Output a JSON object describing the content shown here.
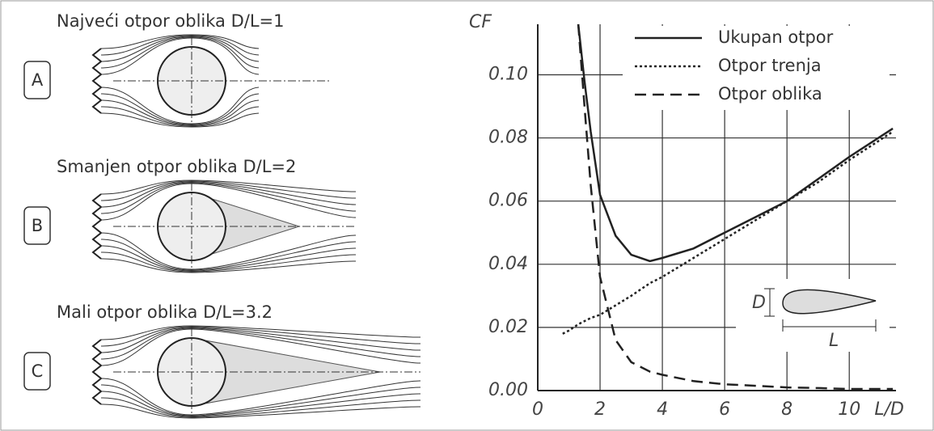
{
  "diagrams": [
    {
      "label": "A",
      "title": "Najveći otpor oblika D/L=1"
    },
    {
      "label": "B",
      "title": "Smanjen otpor oblika D/L=2"
    },
    {
      "label": "C",
      "title": "Mali otpor oblika D/L=3.2"
    }
  ],
  "chart_data": {
    "type": "line",
    "y_label": "CF",
    "x_label": "L/D",
    "x": [
      0.8,
      1,
      1.3,
      1.5,
      1.7,
      2,
      2.5,
      3,
      3.6,
      4,
      5,
      6,
      7,
      8,
      9,
      10,
      11.4
    ],
    "series": [
      {
        "name": "Ukupan otpor",
        "color": "#222",
        "dash": "solid",
        "values": [
          null,
          null,
          0.116,
          0.098,
          0.082,
          0.062,
          0.049,
          0.043,
          0.041,
          0.042,
          0.045,
          0.05,
          0.055,
          0.06,
          0.067,
          0.074,
          0.083
        ]
      },
      {
        "name": "Otpor trenja",
        "color": "#222",
        "dash": "dotted",
        "values": [
          0.018,
          0.019,
          0.021,
          0.022,
          0.023,
          0.024,
          0.027,
          0.03,
          0.034,
          0.036,
          0.042,
          0.048,
          0.054,
          0.06,
          0.066,
          0.073,
          0.082
        ]
      },
      {
        "name": "Otpor oblika",
        "color": "#222",
        "dash": "dashed",
        "values": [
          null,
          null,
          0.116,
          0.09,
          0.065,
          0.036,
          0.016,
          0.009,
          0.006,
          0.005,
          0.003,
          0.002,
          0.0015,
          0.001,
          0.0008,
          0.0005,
          0.0005
        ]
      }
    ],
    "xlim": [
      0,
      11.5
    ],
    "ylim": [
      0,
      0.116
    ],
    "xticks": [
      0,
      2,
      4,
      6,
      8,
      10
    ],
    "yticks": [
      {
        "value": 0,
        "label": "0.00"
      },
      0.02,
      0.04,
      0.06,
      0.08,
      {
        "value": 0.1,
        "label": "0.10"
      }
    ],
    "grid": true,
    "annotations": [
      "D",
      "L"
    ]
  }
}
